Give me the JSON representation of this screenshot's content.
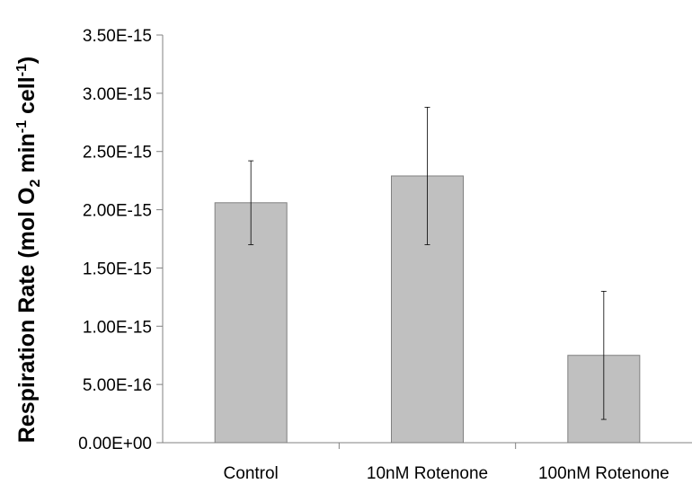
{
  "chart_data": {
    "type": "bar",
    "title": "",
    "xlabel": "",
    "ylabel": {
      "main": "Respiration Rate (mol O",
      "sub": "2",
      "mid": " min",
      "sup1": "-1",
      "end": " cell",
      "sup2": "-1",
      "close": ")"
    },
    "categories": [
      "Control",
      "10nM Rotenone",
      "100nM Rotenone"
    ],
    "values": [
      2.06e-15,
      2.29e-15,
      7.5e-16
    ],
    "error_low": [
      1.7e-15,
      1.7e-15,
      2e-16
    ],
    "error_high": [
      2.42e-15,
      2.88e-15,
      1.3e-15
    ],
    "ylim": [
      0,
      3.5e-15
    ],
    "yticks": [
      0,
      5e-16,
      1e-15,
      1.5e-15,
      2e-15,
      2.5e-15,
      3e-15,
      3.5e-15
    ],
    "ytick_labels": [
      "0.00E+00",
      "5.00E-16",
      "1.00E-15",
      "1.50E-15",
      "2.00E-15",
      "2.50E-15",
      "3.00E-15",
      "3.50E-15"
    ],
    "bar_color": "#c0c0c0",
    "bar_edge_color": "#808080",
    "grid": false,
    "legend": "none"
  }
}
